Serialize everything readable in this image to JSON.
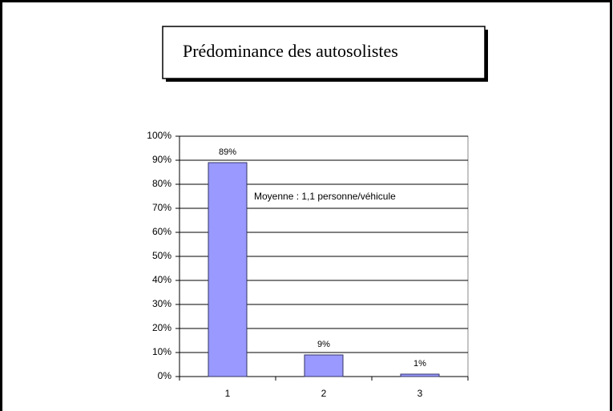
{
  "chart_data": {
    "type": "bar",
    "title": "Prédominance des autosolistes",
    "annotation": "Moyenne : 1,1 personne/véhicule",
    "categories": [
      "1",
      "2",
      "3"
    ],
    "values": [
      89,
      9,
      1
    ],
    "value_labels": [
      "89%",
      "9%",
      "1%"
    ],
    "color": "#9999ff",
    "ylim": [
      0,
      100
    ],
    "yticks": [
      {
        "value": 0,
        "label": "0%"
      },
      {
        "value": 10,
        "label": "10%"
      },
      {
        "value": 20,
        "label": "20%"
      },
      {
        "value": 30,
        "label": "30%"
      },
      {
        "value": 40,
        "label": "40%"
      },
      {
        "value": 50,
        "label": "50%"
      },
      {
        "value": 60,
        "label": "60%"
      },
      {
        "value": 70,
        "label": "70%"
      },
      {
        "value": 80,
        "label": "80%"
      },
      {
        "value": 90,
        "label": "90%"
      },
      {
        "value": 100,
        "label": "100%"
      }
    ],
    "grid": true
  }
}
